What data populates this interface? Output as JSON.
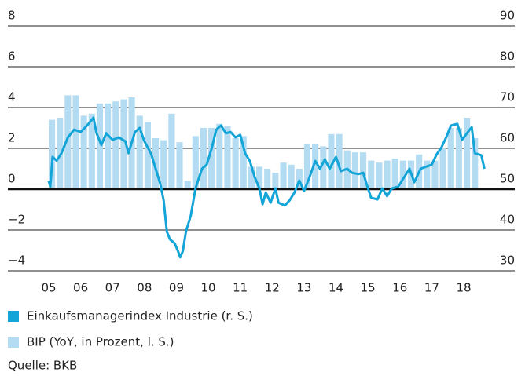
{
  "chart_data": {
    "type": "bar-line",
    "series": [
      {
        "name": "BIP (YoY, in Prozent, l. S.)",
        "type": "bar",
        "axis": "y",
        "color": "#b3dcf2",
        "x": [
          2005,
          2005.25,
          2005.5,
          2005.75,
          2006,
          2006.25,
          2006.5,
          2006.75,
          2007,
          2007.25,
          2007.5,
          2007.75,
          2008,
          2008.25,
          2008.5,
          2008.75,
          2009,
          2009.25,
          2009.5,
          2009.75,
          2010,
          2010.25,
          2010.5,
          2010.75,
          2011,
          2011.25,
          2011.5,
          2011.75,
          2012,
          2012.25,
          2012.5,
          2012.75,
          2013,
          2013.25,
          2013.5,
          2013.75,
          2014,
          2014.25,
          2014.5,
          2014.75,
          2015,
          2015.25,
          2015.5,
          2015.75,
          2016,
          2016.25,
          2016.5,
          2016.75,
          2017,
          2017.25,
          2017.5,
          2017.75,
          2018,
          2018.25
        ],
        "values": [
          3.4,
          3.5,
          4.6,
          4.6,
          3.6,
          3.7,
          4.2,
          4.2,
          4.3,
          4.4,
          4.5,
          3.6,
          3.3,
          2.5,
          2.4,
          3.7,
          2.3,
          0.4,
          2.6,
          3.0,
          3.0,
          3.2,
          3.1,
          2.5,
          2.6,
          1.1,
          1.1,
          1.0,
          0.8,
          1.3,
          1.2,
          1.0,
          2.2,
          2.2,
          2.1,
          2.7,
          2.7,
          1.9,
          1.8,
          1.8,
          1.4,
          1.3,
          1.4,
          1.5,
          1.4,
          1.4,
          1.7,
          1.4,
          1.4,
          2.0,
          3.0,
          3.0,
          3.5,
          2.5
        ]
      },
      {
        "name": "Einkaufsmanagerindex Industrie (r. S.)",
        "type": "line",
        "axis": "y2",
        "color": "#13a4d8",
        "x": [
          2005,
          2005.05,
          2005.12,
          2005.25,
          2005.4,
          2005.6,
          2005.8,
          2006,
          2006.2,
          2006.4,
          2006.5,
          2006.65,
          2006.8,
          2007,
          2007.2,
          2007.4,
          2007.5,
          2007.7,
          2007.85,
          2008,
          2008.2,
          2008.35,
          2008.5,
          2008.6,
          2008.7,
          2008.8,
          2008.95,
          2009.05,
          2009.12,
          2009.2,
          2009.3,
          2009.45,
          2009.6,
          2009.8,
          2009.95,
          2010.1,
          2010.25,
          2010.4,
          2010.55,
          2010.7,
          2010.85,
          2011,
          2011.15,
          2011.3,
          2011.45,
          2011.6,
          2011.7,
          2011.8,
          2011.95,
          2012.1,
          2012.2,
          2012.4,
          2012.55,
          2012.7,
          2012.85,
          2013,
          2013.15,
          2013.35,
          2013.5,
          2013.65,
          2013.8,
          2014,
          2014.15,
          2014.35,
          2014.5,
          2014.7,
          2014.85,
          2015,
          2015.1,
          2015.3,
          2015.45,
          2015.6,
          2015.75,
          2015.95,
          2016.1,
          2016.3,
          2016.45,
          2016.65,
          2016.85,
          2017,
          2017.15,
          2017.3,
          2017.45,
          2017.6,
          2017.8,
          2017.95,
          2018.1,
          2018.25,
          2018.35,
          2018.55,
          2018.65
        ],
        "values": [
          52,
          50.6,
          57.9,
          57,
          58.8,
          62.7,
          64.6,
          64,
          65.6,
          67.5,
          63.7,
          60.8,
          63.7,
          62.1,
          62.7,
          61.7,
          58.8,
          64,
          65,
          61.7,
          58.8,
          55,
          51.2,
          47.3,
          39.6,
          37.7,
          36.7,
          34.8,
          33.3,
          34.8,
          39.6,
          43.5,
          50.2,
          55,
          56,
          59.8,
          64.6,
          65.6,
          63.7,
          64,
          62.7,
          63.3,
          58.8,
          56.9,
          53,
          50.2,
          46.3,
          49.2,
          46.7,
          50.2,
          46.7,
          46,
          47.3,
          49.2,
          52.1,
          49.6,
          52.5,
          56.9,
          55,
          57.3,
          55,
          57.9,
          54.4,
          55,
          54,
          53.7,
          54,
          50.2,
          47.9,
          47.5,
          50.2,
          48.3,
          50.2,
          50.6,
          52.5,
          55,
          51.7,
          55,
          55.6,
          56,
          58.5,
          60.2,
          62.7,
          65.6,
          66,
          62.1,
          63.7,
          65.2,
          58.8,
          58.3,
          55
        ]
      }
    ],
    "legend_order": [
      1,
      0
    ],
    "xlim": [
      2003.72,
      2019.6
    ],
    "xticks": [
      {
        "value": 2005,
        "label": "05"
      },
      {
        "value": 2006,
        "label": "06"
      },
      {
        "value": 2007,
        "label": "07"
      },
      {
        "value": 2008,
        "label": "08"
      },
      {
        "value": 2009,
        "label": "09"
      },
      {
        "value": 2010,
        "label": "10"
      },
      {
        "value": 2011,
        "label": "11"
      },
      {
        "value": 2012,
        "label": "12"
      },
      {
        "value": 2013,
        "label": "13"
      },
      {
        "value": 2014,
        "label": "14"
      },
      {
        "value": 2015,
        "label": "15"
      },
      {
        "value": 2016,
        "label": "16"
      },
      {
        "value": 2017,
        "label": "17"
      },
      {
        "value": 2018,
        "label": "18"
      }
    ],
    "ylim": [
      -4,
      8
    ],
    "yticks": [
      {
        "value": -4,
        "label": "−4"
      },
      {
        "value": -2,
        "label": "−2"
      },
      0,
      2,
      4,
      6,
      8
    ],
    "y2lim": [
      30,
      90
    ],
    "y2ticks": [
      30,
      40,
      50,
      60,
      70,
      80,
      90
    ],
    "grid": true,
    "source": "Quelle: BKB"
  }
}
